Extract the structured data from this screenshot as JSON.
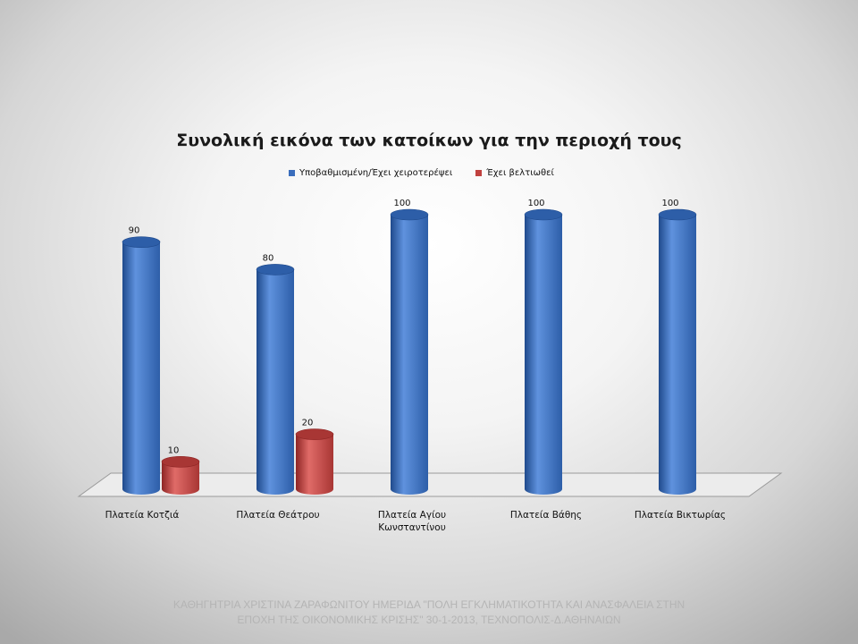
{
  "chart_data": {
    "type": "bar",
    "title": "Συνολική εικόνα των κατοίκων για την περιοχή τους",
    "categories": [
      "Πλατεία Κοτζιά",
      "Πλατεία Θεάτρου",
      "Πλατεία Αγίου Κωνσταντίνου",
      "Πλατεία Βάθης",
      "Πλατεία Βικτωρίας"
    ],
    "category_lines": [
      [
        "Πλατεία Κοτζιά"
      ],
      [
        "Πλατεία Θεάτρου"
      ],
      [
        "Πλατεία Αγίου",
        "Κωνσταντίνου"
      ],
      [
        "Πλατεία Βάθης"
      ],
      [
        "Πλατεία Βικτωρίας"
      ]
    ],
    "series": [
      {
        "name": "Υποβαθμισμένη/Έχει χειροτερέψει",
        "color": "#3a6dbc",
        "values": [
          90,
          80,
          100,
          100,
          100
        ]
      },
      {
        "name": "Έχει βελτιωθεί",
        "color": "#c0413f",
        "values": [
          10,
          20,
          null,
          null,
          null
        ]
      }
    ],
    "ylim": [
      0,
      100
    ],
    "grid": false,
    "legend_position": "top",
    "style": "3d-cylinder"
  },
  "legend": {
    "series1": "Υποβαθμισμένη/Έχει χειροτερέψει",
    "series2": "Έχει βελτιωθεί"
  },
  "footer": {
    "line1": "ΚΑΘΗΓΗΤΡΙΑ ΧΡΙΣΤΙΝΑ ΖΑΡΑΦΩΝΙΤΟΥ ΗΜΕΡΙΔΑ \"ΠΟΛΗ ΕΓΚΛΗΜΑΤΙΚΟΤΗΤΑ ΚΑΙ ΑΝΑΣΦΑΛΕΙΑ ΣΤΗΝ",
    "line2": "ΕΠΟΧΗ ΤΗΣ ΟΙΚΟΝΟΜΙΚΗΣ ΚΡΙΣΗΣ\" 30-1-2013, ΤΕΧΝΟΠΟΛΙΣ-Δ.ΑΘΗΝΑΙΩΝ"
  }
}
